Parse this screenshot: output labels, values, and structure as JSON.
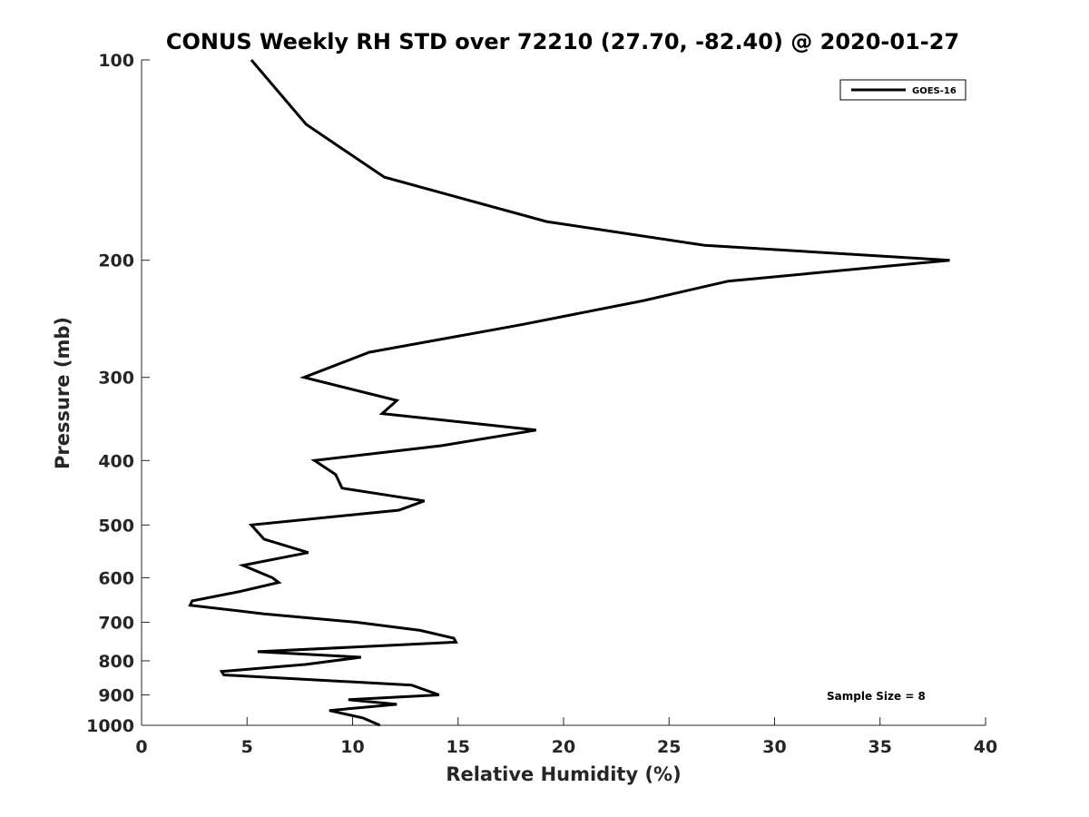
{
  "chart_data": {
    "type": "line",
    "title": "CONUS Weekly RH STD over 72210 (27.70, -82.40) @ 2020-01-27",
    "xlabel": "Relative Humidity (%)",
    "ylabel": "Pressure (mb)",
    "xlim": [
      0,
      40
    ],
    "ylim": [
      100,
      1000
    ],
    "yscale": "log",
    "y_reversed": true,
    "xticks": [
      0,
      5,
      10,
      15,
      20,
      25,
      30,
      35,
      40
    ],
    "yticks": [
      100,
      200,
      300,
      400,
      500,
      600,
      700,
      800,
      900,
      1000
    ],
    "grid": false,
    "legend_position": "top-right",
    "annotation": "Sample Size = 8",
    "line_color": "#000000",
    "series": [
      {
        "name": "GOES-16",
        "points": [
          [
            5.2,
            100
          ],
          [
            7.8,
            125
          ],
          [
            11.5,
            150
          ],
          [
            19.2,
            175
          ],
          [
            26.7,
            190
          ],
          [
            38.3,
            200
          ],
          [
            27.8,
            215
          ],
          [
            23.8,
            230
          ],
          [
            18.0,
            250
          ],
          [
            10.8,
            275
          ],
          [
            7.7,
            300
          ],
          [
            12.1,
            325
          ],
          [
            11.4,
            340
          ],
          [
            18.7,
            360
          ],
          [
            14.2,
            380
          ],
          [
            8.2,
            400
          ],
          [
            9.2,
            420
          ],
          [
            9.5,
            440
          ],
          [
            13.4,
            460
          ],
          [
            12.2,
            475
          ],
          [
            5.2,
            500
          ],
          [
            5.8,
            525
          ],
          [
            7.9,
            550
          ],
          [
            4.8,
            575
          ],
          [
            6.2,
            600
          ],
          [
            6.5,
            610
          ],
          [
            4.6,
            630
          ],
          [
            2.4,
            650
          ],
          [
            2.3,
            660
          ],
          [
            5.8,
            680
          ],
          [
            10.2,
            700
          ],
          [
            13.2,
            720
          ],
          [
            14.8,
            740
          ],
          [
            14.9,
            750
          ],
          [
            5.5,
            775
          ],
          [
            10.4,
            790
          ],
          [
            7.8,
            810
          ],
          [
            3.8,
            830
          ],
          [
            3.9,
            840
          ],
          [
            12.8,
            870
          ],
          [
            14.1,
            900
          ],
          [
            9.8,
            915
          ],
          [
            12.1,
            930
          ],
          [
            8.9,
            950
          ],
          [
            10.5,
            975
          ],
          [
            11.3,
            1000
          ]
        ]
      }
    ]
  }
}
